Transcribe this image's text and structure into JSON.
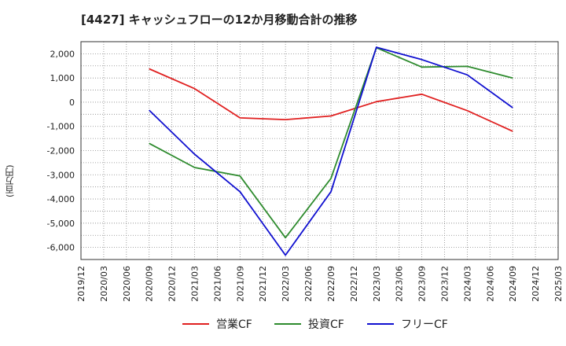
{
  "chart_data": {
    "type": "line",
    "title": "[4427]  キャッシュフローの12か月移動合計の推移",
    "ylabel": "(百万円)",
    "xlabel": "",
    "ylim": [
      -6500,
      2500
    ],
    "yticks": [
      2000,
      1000,
      0,
      -1000,
      -2000,
      -3000,
      -4000,
      -5000,
      -6000
    ],
    "ytick_labels": [
      "2,000",
      "1,000",
      "0",
      "-1,000",
      "-2,000",
      "-3,000",
      "-4,000",
      "-5,000",
      "-6,000"
    ],
    "categories": [
      "2019/12",
      "2020/03",
      "2020/06",
      "2020/09",
      "2020/12",
      "2021/03",
      "2021/06",
      "2021/09",
      "2021/12",
      "2022/03",
      "2022/06",
      "2022/09",
      "2022/12",
      "2023/03",
      "2023/06",
      "2023/09",
      "2023/12",
      "2024/03",
      "2024/06",
      "2024/09",
      "2024/12",
      "2025/03"
    ],
    "grid": true,
    "legend_position": "bottom-center",
    "series": [
      {
        "name": "営業CF",
        "color": "#e02020",
        "values": [
          null,
          null,
          null,
          1380,
          null,
          560,
          null,
          -650,
          null,
          -720,
          null,
          -570,
          null,
          20,
          null,
          330,
          null,
          -350,
          null,
          -1200,
          null,
          null
        ]
      },
      {
        "name": "投資CF",
        "color": "#2e8b2e",
        "values": [
          null,
          null,
          null,
          -1700,
          null,
          -2700,
          null,
          -3050,
          null,
          -5600,
          null,
          -3150,
          null,
          2250,
          null,
          1450,
          null,
          1480,
          null,
          1000,
          null,
          null
        ]
      },
      {
        "name": "フリーCF",
        "color": "#1010d0",
        "values": [
          null,
          null,
          null,
          -330,
          null,
          -2150,
          null,
          -3700,
          null,
          -6320,
          null,
          -3700,
          null,
          2270,
          null,
          1760,
          null,
          1130,
          null,
          -230,
          null,
          null
        ]
      }
    ]
  }
}
